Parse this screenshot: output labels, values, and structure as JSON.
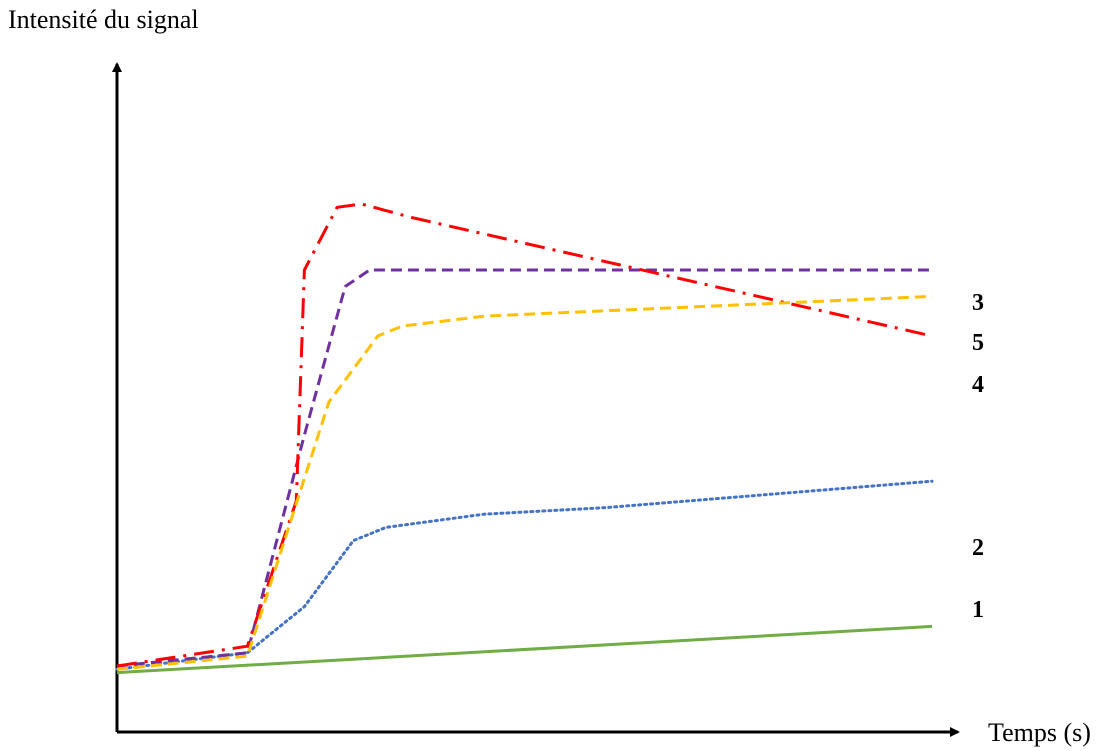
{
  "chart_data": {
    "type": "line",
    "title": "",
    "xlabel": "Temps (s)",
    "ylabel": "Intensité du signal",
    "xlim": [
      0,
      10
    ],
    "ylim": [
      0,
      10
    ],
    "grid": false,
    "legend": "inline labels at right end of each curve",
    "series": [
      {
        "label": "1",
        "color": "#70ad47",
        "dash": "solid",
        "x": [
          0,
          10
        ],
        "y": [
          0.9,
          1.6
        ]
      },
      {
        "label": "2",
        "color": "#4472c4",
        "dash": "dotted",
        "x": [
          0,
          1.6,
          2.3,
          2.9,
          3.3,
          4.5,
          6.0,
          8.0,
          10
        ],
        "y": [
          0.95,
          1.2,
          1.9,
          2.9,
          3.1,
          3.3,
          3.4,
          3.6,
          3.8
        ]
      },
      {
        "label": "3",
        "color": "#7030a0",
        "dash": "dashed",
        "x": [
          0,
          1.6,
          2.3,
          2.8,
          3.1,
          4.0,
          10
        ],
        "y": [
          1.0,
          1.2,
          4.5,
          6.75,
          7.0,
          7.0,
          7.0
        ]
      },
      {
        "label": "4",
        "color": "#ff0000",
        "dash": "dash-dot",
        "x": [
          0,
          1.6,
          2.2,
          2.3,
          2.7,
          3.0,
          3.6,
          10
        ],
        "y": [
          1.0,
          1.3,
          3.5,
          7.0,
          7.95,
          8.0,
          7.8,
          6.0
        ]
      },
      {
        "label": "5",
        "color": "#ffc000",
        "dash": "dashed",
        "x": [
          0,
          1.6,
          2.6,
          3.2,
          3.5,
          4.5,
          10
        ],
        "y": [
          0.95,
          1.15,
          5.0,
          6.0,
          6.15,
          6.3,
          6.6
        ]
      }
    ],
    "label_order_top_to_bottom": [
      "3",
      "5",
      "4",
      "2",
      "1"
    ]
  }
}
